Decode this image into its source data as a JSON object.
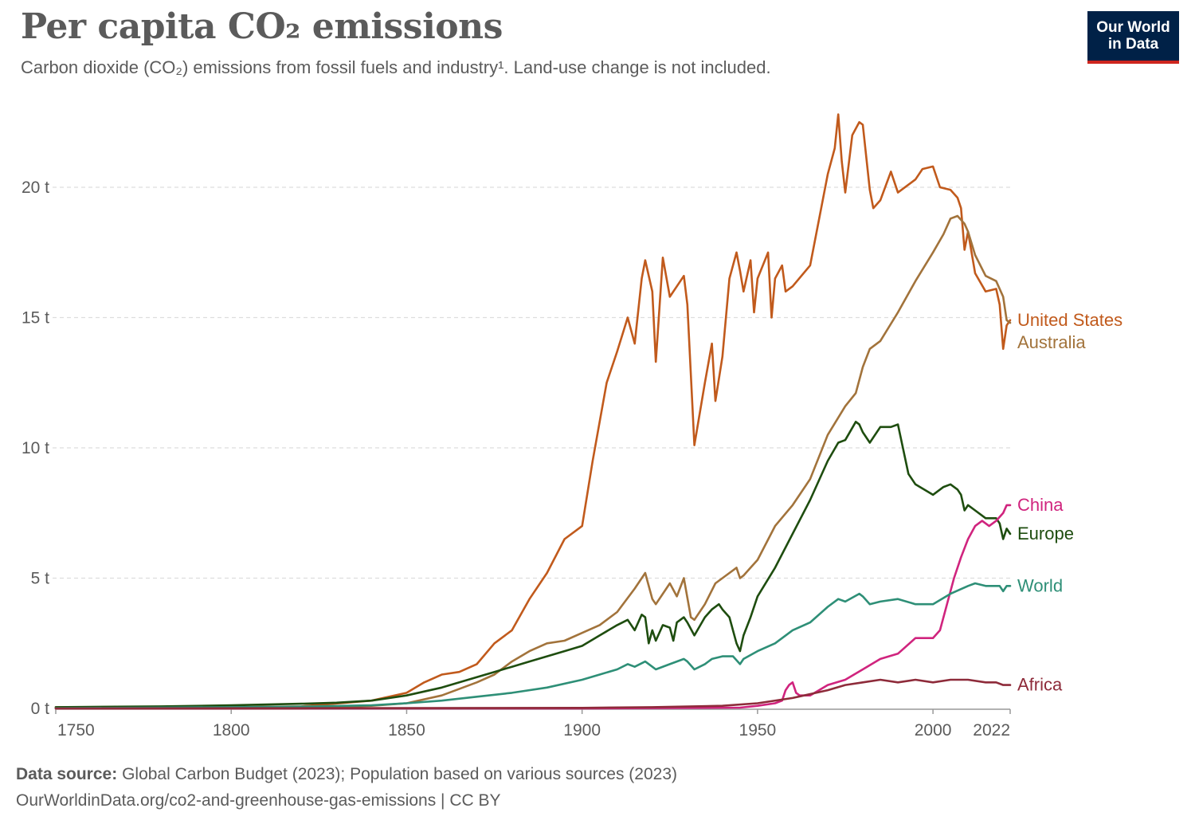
{
  "header": {
    "title": "Per capita CO₂ emissions",
    "subtitle": "Carbon dioxide (CO₂) emissions from fossil fuels and industry¹. Land-use change is not included.",
    "logo_line1": "Our World",
    "logo_line2": "in Data"
  },
  "footer": {
    "source_label": "Data source:",
    "source_text": "Global Carbon Budget (2023); Population based on various sources (2023)",
    "url_text": "OurWorldinData.org/co2-and-greenhouse-gas-emissions | CC BY"
  },
  "colors": {
    "text": "#5b5b5b",
    "grid": "#dddddd",
    "axis": "#999999",
    "logo_bg": "#002147",
    "logo_accent": "#ce261e"
  },
  "chart_data": {
    "type": "line",
    "title": "Per capita CO₂ emissions",
    "xlabel": "",
    "ylabel": "",
    "xlim": [
      1750,
      2022
    ],
    "ylim": [
      0,
      23
    ],
    "x_ticks": [
      1750,
      1800,
      1850,
      1900,
      1950,
      2000,
      2022
    ],
    "y_ticks": [
      0,
      5,
      10,
      15,
      20
    ],
    "y_tick_labels": [
      "0 t",
      "5 t",
      "10 t",
      "15 t",
      "20 t"
    ],
    "x_tick_labels": [
      "1750",
      "1800",
      "1850",
      "1900",
      "1950",
      "2000",
      "2022"
    ],
    "grid": "horizontal dashed",
    "legend": "inline labels at right end of lines",
    "series": [
      {
        "name": "United States",
        "color": "#c15a1c",
        "x": [
          1750,
          1800,
          1820,
          1840,
          1850,
          1855,
          1860,
          1865,
          1870,
          1875,
          1880,
          1885,
          1890,
          1895,
          1900,
          1903,
          1905,
          1907,
          1910,
          1913,
          1915,
          1917,
          1918,
          1920,
          1921,
          1923,
          1925,
          1927,
          1929,
          1930,
          1932,
          1935,
          1937,
          1938,
          1940,
          1942,
          1944,
          1945,
          1946,
          1948,
          1949,
          1950,
          1953,
          1954,
          1955,
          1957,
          1958,
          1960,
          1965,
          1970,
          1972,
          1973,
          1974,
          1975,
          1977,
          1979,
          1980,
          1982,
          1983,
          1985,
          1988,
          1990,
          1995,
          1997,
          2000,
          2002,
          2005,
          2007,
          2008,
          2009,
          2010,
          2012,
          2015,
          2018,
          2019,
          2020,
          2021,
          2022
        ],
        "y": [
          0.05,
          0.05,
          0.08,
          0.3,
          0.6,
          1.0,
          1.3,
          1.4,
          1.7,
          2.5,
          3.0,
          4.2,
          5.2,
          6.5,
          7.0,
          9.5,
          11.0,
          12.5,
          13.7,
          15.0,
          14.0,
          16.5,
          17.2,
          16.0,
          13.3,
          17.3,
          15.8,
          16.2,
          16.6,
          15.5,
          10.1,
          12.5,
          14.0,
          11.8,
          13.5,
          16.5,
          17.5,
          16.8,
          16.0,
          17.2,
          15.2,
          16.5,
          17.5,
          15.0,
          16.5,
          17.0,
          16.0,
          16.2,
          17.0,
          20.5,
          21.5,
          22.8,
          21.0,
          19.8,
          22.0,
          22.5,
          22.4,
          19.9,
          19.2,
          19.5,
          20.6,
          19.8,
          20.3,
          20.7,
          20.8,
          20.0,
          19.9,
          19.6,
          19.2,
          17.6,
          18.3,
          16.7,
          16.0,
          16.1,
          15.5,
          13.8,
          14.7,
          14.9
        ]
      },
      {
        "name": "Australia",
        "color": "#a2733b",
        "x": [
          1750,
          1820,
          1840,
          1850,
          1860,
          1870,
          1875,
          1880,
          1885,
          1890,
          1895,
          1900,
          1905,
          1910,
          1915,
          1918,
          1920,
          1921,
          1923,
          1925,
          1927,
          1929,
          1931,
          1932,
          1935,
          1938,
          1940,
          1942,
          1944,
          1945,
          1946,
          1948,
          1950,
          1955,
          1960,
          1965,
          1970,
          1975,
          1978,
          1980,
          1982,
          1985,
          1990,
          1995,
          2000,
          2003,
          2005,
          2007,
          2009,
          2010,
          2012,
          2015,
          2018,
          2020,
          2021,
          2022
        ],
        "y": [
          0.0,
          0.0,
          0.1,
          0.2,
          0.5,
          1.0,
          1.3,
          1.8,
          2.2,
          2.5,
          2.6,
          2.9,
          3.2,
          3.7,
          4.6,
          5.2,
          4.2,
          4.0,
          4.4,
          4.8,
          4.3,
          5.0,
          3.5,
          3.4,
          4.0,
          4.8,
          5.0,
          5.2,
          5.4,
          5.0,
          5.1,
          5.4,
          5.7,
          7.0,
          7.8,
          8.8,
          10.5,
          11.6,
          12.1,
          13.1,
          13.8,
          14.1,
          15.2,
          16.4,
          17.5,
          18.2,
          18.8,
          18.9,
          18.6,
          18.3,
          17.4,
          16.6,
          16.4,
          15.8,
          14.9,
          14.8
        ]
      },
      {
        "name": "Europe",
        "color": "#1e4d0f",
        "x": [
          1750,
          1780,
          1800,
          1820,
          1830,
          1840,
          1850,
          1860,
          1870,
          1875,
          1880,
          1885,
          1890,
          1895,
          1900,
          1905,
          1910,
          1913,
          1915,
          1917,
          1918,
          1919,
          1920,
          1921,
          1923,
          1925,
          1926,
          1927,
          1929,
          1930,
          1932,
          1935,
          1937,
          1939,
          1940,
          1942,
          1944,
          1945,
          1946,
          1948,
          1950,
          1955,
          1960,
          1965,
          1970,
          1973,
          1975,
          1978,
          1979,
          1980,
          1982,
          1985,
          1988,
          1990,
          1993,
          1995,
          2000,
          2003,
          2005,
          2007,
          2008,
          2009,
          2010,
          2012,
          2015,
          2018,
          2019,
          2020,
          2021,
          2022
        ],
        "y": [
          0.05,
          0.08,
          0.12,
          0.18,
          0.22,
          0.3,
          0.5,
          0.8,
          1.2,
          1.4,
          1.6,
          1.8,
          2.0,
          2.2,
          2.4,
          2.8,
          3.2,
          3.4,
          3.0,
          3.6,
          3.5,
          2.5,
          3.0,
          2.6,
          3.2,
          3.1,
          2.6,
          3.3,
          3.5,
          3.3,
          2.8,
          3.5,
          3.8,
          4.0,
          3.8,
          3.5,
          2.5,
          2.2,
          2.8,
          3.5,
          4.3,
          5.4,
          6.7,
          8.0,
          9.5,
          10.2,
          10.3,
          11.0,
          10.9,
          10.6,
          10.2,
          10.8,
          10.8,
          10.9,
          9.0,
          8.6,
          8.2,
          8.5,
          8.6,
          8.4,
          8.2,
          7.6,
          7.8,
          7.6,
          7.3,
          7.3,
          7.1,
          6.5,
          6.9,
          6.7
        ]
      },
      {
        "name": "China",
        "color": "#d0247e",
        "x": [
          1750,
          1900,
          1930,
          1945,
          1950,
          1955,
          1957,
          1958,
          1959,
          1960,
          1961,
          1962,
          1965,
          1970,
          1975,
          1980,
          1985,
          1990,
          1995,
          2000,
          2002,
          2004,
          2006,
          2008,
          2010,
          2012,
          2014,
          2016,
          2018,
          2020,
          2021,
          2022
        ],
        "y": [
          0.0,
          0.0,
          0.02,
          0.03,
          0.1,
          0.2,
          0.3,
          0.7,
          0.9,
          1.0,
          0.6,
          0.5,
          0.5,
          0.9,
          1.1,
          1.5,
          1.9,
          2.1,
          2.7,
          2.7,
          3.0,
          4.0,
          5.0,
          5.8,
          6.5,
          7.0,
          7.2,
          7.0,
          7.2,
          7.5,
          7.8,
          7.8
        ]
      },
      {
        "name": "World",
        "color": "#2e8f77",
        "x": [
          1750,
          1800,
          1820,
          1840,
          1850,
          1860,
          1870,
          1880,
          1890,
          1900,
          1905,
          1910,
          1913,
          1915,
          1918,
          1920,
          1921,
          1925,
          1929,
          1930,
          1932,
          1935,
          1937,
          1940,
          1943,
          1945,
          1946,
          1950,
          1955,
          1960,
          1965,
          1970,
          1973,
          1975,
          1979,
          1980,
          1982,
          1985,
          1990,
          1995,
          2000,
          2005,
          2010,
          2012,
          2015,
          2018,
          2019,
          2020,
          2021,
          2022
        ],
        "y": [
          0.01,
          0.05,
          0.07,
          0.12,
          0.2,
          0.3,
          0.45,
          0.6,
          0.8,
          1.1,
          1.3,
          1.5,
          1.7,
          1.6,
          1.8,
          1.6,
          1.5,
          1.7,
          1.9,
          1.8,
          1.5,
          1.7,
          1.9,
          2.0,
          2.0,
          1.7,
          1.9,
          2.2,
          2.5,
          3.0,
          3.3,
          3.9,
          4.2,
          4.1,
          4.4,
          4.3,
          4.0,
          4.1,
          4.2,
          4.0,
          4.0,
          4.4,
          4.7,
          4.8,
          4.7,
          4.7,
          4.7,
          4.5,
          4.7,
          4.7
        ]
      },
      {
        "name": "Africa",
        "color": "#8e2b3a",
        "x": [
          1750,
          1900,
          1920,
          1940,
          1950,
          1960,
          1970,
          1975,
          1980,
          1985,
          1990,
          1995,
          2000,
          2005,
          2010,
          2015,
          2018,
          2020,
          2021,
          2022
        ],
        "y": [
          0.0,
          0.02,
          0.05,
          0.1,
          0.2,
          0.4,
          0.7,
          0.9,
          1.0,
          1.1,
          1.0,
          1.1,
          1.0,
          1.1,
          1.1,
          1.0,
          1.0,
          0.9,
          0.9,
          0.9
        ]
      }
    ]
  }
}
